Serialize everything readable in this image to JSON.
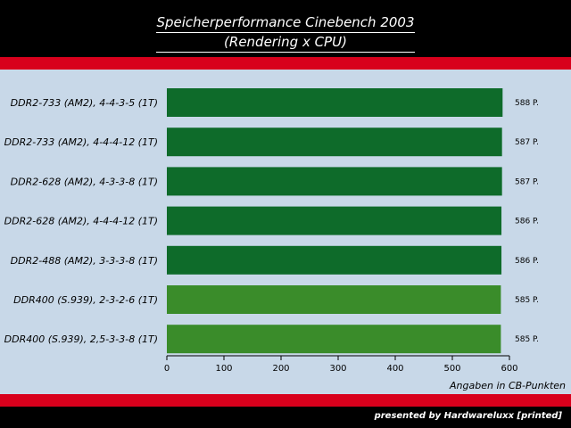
{
  "header": {
    "title_line1": "Speicherperformance Cinebench 2003",
    "title_line2": "(Rendering x CPU)"
  },
  "footer": {
    "credit": "presented by Hardwareluxx [printed]"
  },
  "colors": {
    "background": "#000000",
    "accent_red": "#d8001c",
    "panel": "#c8d8e8",
    "bar_dark_green": "#0e6b2a",
    "bar_light_green": "#3a8c2a"
  },
  "chart_data": {
    "type": "bar",
    "orientation": "horizontal",
    "categories": [
      "DDR2-733 (AM2), 4-4-3-5 (1T)",
      "DDR2-733 (AM2), 4-4-4-12 (1T)",
      "DDR2-628 (AM2), 4-3-3-8 (1T)",
      "DDR2-628 (AM2), 4-4-4-12 (1T)",
      "DDR2-488 (AM2), 3-3-3-8 (1T)",
      "DDR400 (S.939), 2-3-2-6 (1T)",
      "DDR400 (S.939), 2,5-3-3-8 (1T)"
    ],
    "values": [
      588,
      587,
      587,
      586,
      586,
      585,
      585
    ],
    "value_labels": [
      "588 P.",
      "587 P.",
      "587 P.",
      "586 P.",
      "586 P.",
      "585 P.",
      "585 P."
    ],
    "bar_colors": [
      "#0e6b2a",
      "#0e6b2a",
      "#0e6b2a",
      "#0e6b2a",
      "#0e6b2a",
      "#3a8c2a",
      "#3a8c2a"
    ],
    "xticks": [
      0,
      100,
      200,
      300,
      400,
      500,
      600
    ],
    "xlim": [
      0,
      600
    ],
    "xlabel": "Angaben in CB-Punkten",
    "grid": false,
    "legend": "none"
  }
}
